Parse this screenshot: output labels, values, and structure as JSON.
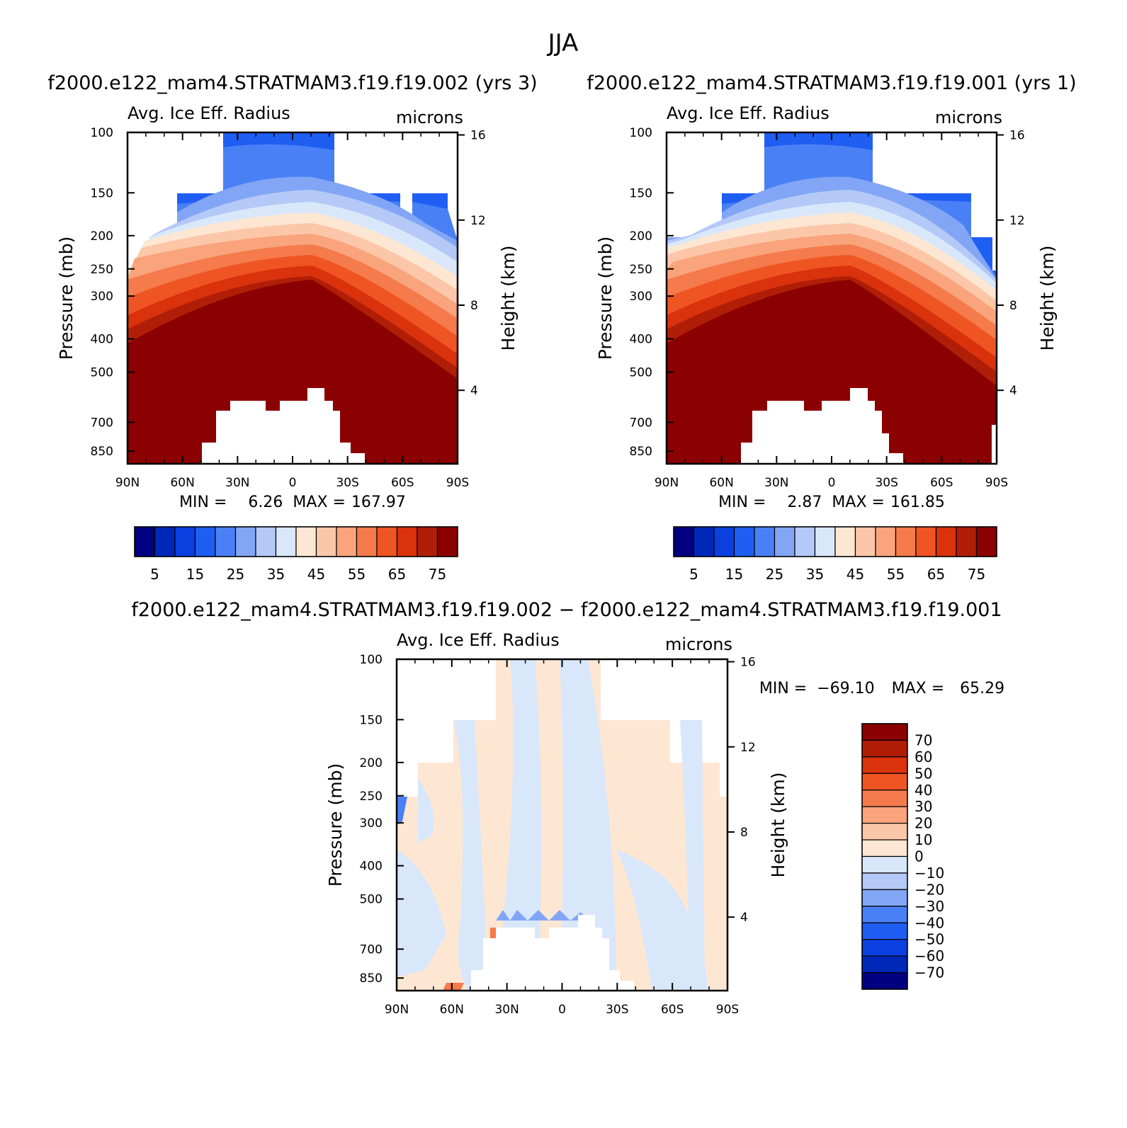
{
  "page_title": "JJA",
  "colors": {
    "abs_palette": [
      "#000080",
      "#0028b8",
      "#0b3fe0",
      "#1f5ef2",
      "#4a80f5",
      "#82a6f5",
      "#b4c9f7",
      "#d9e7fa",
      "#fde7d3",
      "#fcc7a8",
      "#f9a47c",
      "#f57a4c",
      "#ef5523",
      "#d9320d",
      "#b01e08",
      "#8b0000"
    ],
    "diff_palette": [
      "#000080",
      "#0028b8",
      "#0b3fe0",
      "#1f5ef2",
      "#4a80f5",
      "#82a6f5",
      "#b4c9f7",
      "#d9e7fa",
      "#fde7d3",
      "#fcc7a8",
      "#f9a47c",
      "#f57a4c",
      "#ef5523",
      "#d9320d",
      "#b01e08",
      "#8b0000"
    ]
  },
  "chart_data": [
    {
      "type": "heatmap",
      "panel_title": "f2000.e122_mam4.STRATMAM3.f19.f19.002 (yrs 3)",
      "left_string": "Avg. Ice Eff. Radius",
      "right_string": "microns",
      "xlabel": "",
      "ylabel": "Pressure (mb)",
      "ylabel_right": "Height (km)",
      "x_ticks": [
        "90N",
        "60N",
        "30N",
        "0",
        "30S",
        "60S",
        "90S"
      ],
      "xlim": [
        -90,
        90
      ],
      "y_ticks": [
        "100",
        "150",
        "200",
        "250",
        "300",
        "400",
        "500",
        "700",
        "850"
      ],
      "y_values": [
        100,
        150,
        200,
        250,
        300,
        400,
        500,
        700,
        850
      ],
      "ylim": [
        100,
        925
      ],
      "y_right_ticks": [
        "16",
        "12",
        "8",
        "4"
      ],
      "y_right_values": [
        16,
        12,
        8,
        4
      ],
      "min_label": "MIN =",
      "min_value": "6.26",
      "max_label": "MAX =",
      "max_value": "167.97",
      "colorbar_levels": [
        5,
        10,
        15,
        20,
        25,
        30,
        35,
        40,
        45,
        50,
        55,
        60,
        65,
        70,
        75
      ],
      "colorbar_tick_labels": [
        "5",
        "15",
        "25",
        "35",
        "45",
        "55",
        "65",
        "75"
      ],
      "colorbar_orientation": "horizontal"
    },
    {
      "type": "heatmap",
      "panel_title": "f2000.e122_mam4.STRATMAM3.f19.f19.001 (yrs 1)",
      "left_string": "Avg. Ice Eff. Radius",
      "right_string": "microns",
      "xlabel": "",
      "ylabel": "Pressure (mb)",
      "ylabel_right": "Height (km)",
      "x_ticks": [
        "90N",
        "60N",
        "30N",
        "0",
        "30S",
        "60S",
        "90S"
      ],
      "xlim": [
        -90,
        90
      ],
      "y_ticks": [
        "100",
        "150",
        "200",
        "250",
        "300",
        "400",
        "500",
        "700",
        "850"
      ],
      "y_values": [
        100,
        150,
        200,
        250,
        300,
        400,
        500,
        700,
        850
      ],
      "ylim": [
        100,
        925
      ],
      "y_right_ticks": [
        "16",
        "12",
        "8",
        "4"
      ],
      "y_right_values": [
        16,
        12,
        8,
        4
      ],
      "min_label": "MIN =",
      "min_value": "2.87",
      "max_label": "MAX =",
      "max_value": "161.85",
      "colorbar_levels": [
        5,
        10,
        15,
        20,
        25,
        30,
        35,
        40,
        45,
        50,
        55,
        60,
        65,
        70,
        75
      ],
      "colorbar_tick_labels": [
        "5",
        "15",
        "25",
        "35",
        "45",
        "55",
        "65",
        "75"
      ],
      "colorbar_orientation": "horizontal"
    },
    {
      "type": "heatmap",
      "panel_title": "f2000.e122_mam4.STRATMAM3.f19.f19.002 − f2000.e122_mam4.STRATMAM3.f19.f19.001",
      "left_string": "Avg. Ice Eff. Radius",
      "right_string": "microns",
      "xlabel": "",
      "ylabel": "Pressure (mb)",
      "ylabel_right": "Height (km)",
      "x_ticks": [
        "90N",
        "60N",
        "30N",
        "0",
        "30S",
        "60S",
        "90S"
      ],
      "xlim": [
        -90,
        90
      ],
      "y_ticks": [
        "100",
        "150",
        "200",
        "250",
        "300",
        "400",
        "500",
        "700",
        "850"
      ],
      "y_values": [
        100,
        150,
        200,
        250,
        300,
        400,
        500,
        700,
        850
      ],
      "ylim": [
        100,
        925
      ],
      "y_right_ticks": [
        "16",
        "12",
        "8",
        "4"
      ],
      "y_right_values": [
        16,
        12,
        8,
        4
      ],
      "min_label": "MIN =",
      "min_value": "−69.10",
      "max_label": "MAX =",
      "max_value": "65.29",
      "colorbar_levels": [
        70,
        60,
        50,
        40,
        30,
        20,
        10,
        0,
        -10,
        -20,
        -30,
        -40,
        -50,
        -60,
        -70
      ],
      "colorbar_tick_labels": [
        "70",
        "60",
        "50",
        "40",
        "30",
        "20",
        "10",
        "0",
        "−10",
        "−20",
        "−30",
        "−40",
        "−50",
        "−60",
        "−70"
      ],
      "colorbar_orientation": "vertical"
    }
  ]
}
